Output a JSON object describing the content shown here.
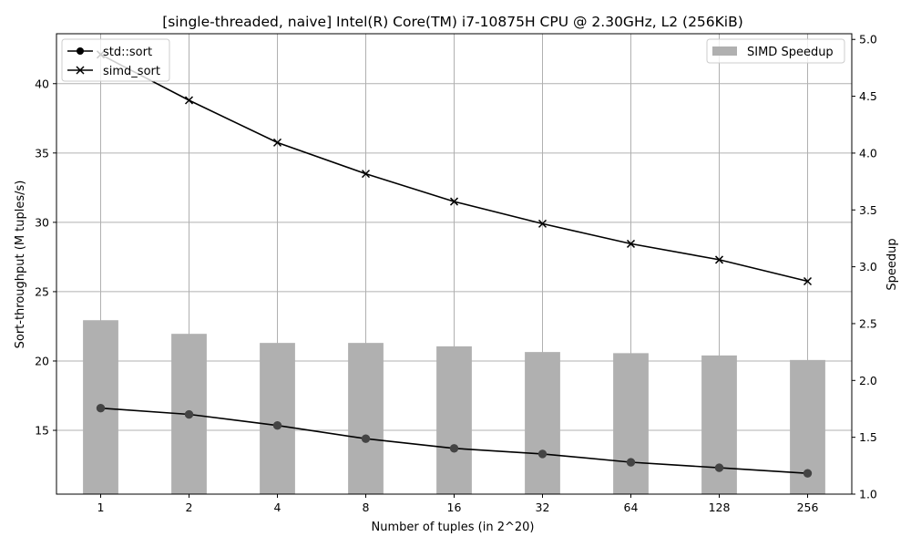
{
  "chart_data": {
    "type": "bar+line",
    "title": "[single-threaded, naive] Intel(R) Core(TM) i7-10875H CPU @ 2.30GHz, L2 (256KiB)",
    "xlabel": "Number of tuples (in 2^20)",
    "ylabel": "Sort-throughput (M tuples/s)",
    "y2label": "Speedup",
    "categories": [
      "1",
      "2",
      "4",
      "8",
      "16",
      "32",
      "64",
      "128",
      "256"
    ],
    "ylim": [
      10.4,
      43.6
    ],
    "y2lim": [
      1.0,
      5.05
    ],
    "yticks": [
      15,
      20,
      25,
      30,
      35,
      40
    ],
    "y2ticks": [
      1.0,
      1.5,
      2.0,
      2.5,
      3.0,
      3.5,
      4.0,
      4.5,
      5.0
    ],
    "grid": true,
    "legend_left": "top-left",
    "legend_right": "top-right",
    "bar_series": {
      "name": "SIMD Speedup",
      "axis": "right",
      "color": "#b0b0b0",
      "values": [
        2.53,
        2.41,
        2.33,
        2.33,
        2.3,
        2.25,
        2.24,
        2.22,
        2.18
      ]
    },
    "line_series": [
      {
        "name": "std::sort",
        "marker": "circle",
        "axis": "left",
        "color": "#000000",
        "values": [
          16.6,
          16.15,
          15.35,
          14.4,
          13.7,
          13.3,
          12.7,
          12.3,
          11.9
        ]
      },
      {
        "name": "simd_sort",
        "marker": "x",
        "axis": "left",
        "color": "#000000",
        "values": [
          42.1,
          38.8,
          35.75,
          33.5,
          31.5,
          29.9,
          28.45,
          27.3,
          25.75
        ]
      }
    ]
  }
}
